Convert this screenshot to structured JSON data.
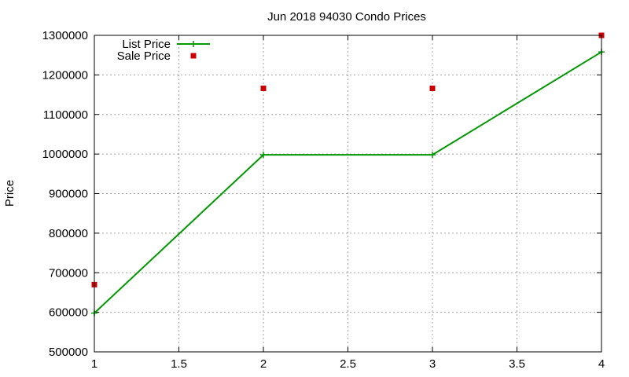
{
  "chart_data": {
    "type": "line",
    "title": "Jun 2018 94030 Condo Prices",
    "xlabel": "",
    "ylabel": "Price",
    "xlim": [
      1,
      4
    ],
    "ylim": [
      500000,
      1300000
    ],
    "x_ticks": [
      "1",
      "1.5",
      "2",
      "2.5",
      "3",
      "3.5",
      "4"
    ],
    "y_ticks": [
      "500000",
      "600000",
      "700000",
      "800000",
      "900000",
      "1000000",
      "1100000",
      "1200000",
      "1300000"
    ],
    "grid": true,
    "legend_position": "top-left",
    "series": [
      {
        "name": "List Price",
        "style": "linespoints",
        "marker": "plus",
        "color": "#009900",
        "x": [
          1,
          2,
          3,
          4
        ],
        "y": [
          598000,
          998000,
          998000,
          1258000
        ]
      },
      {
        "name": "Sale Price",
        "style": "points",
        "marker": "square",
        "color": "#cc0000",
        "x": [
          1,
          2,
          3,
          4
        ],
        "y": [
          670000,
          1166000,
          1166000,
          1300000
        ]
      }
    ]
  }
}
